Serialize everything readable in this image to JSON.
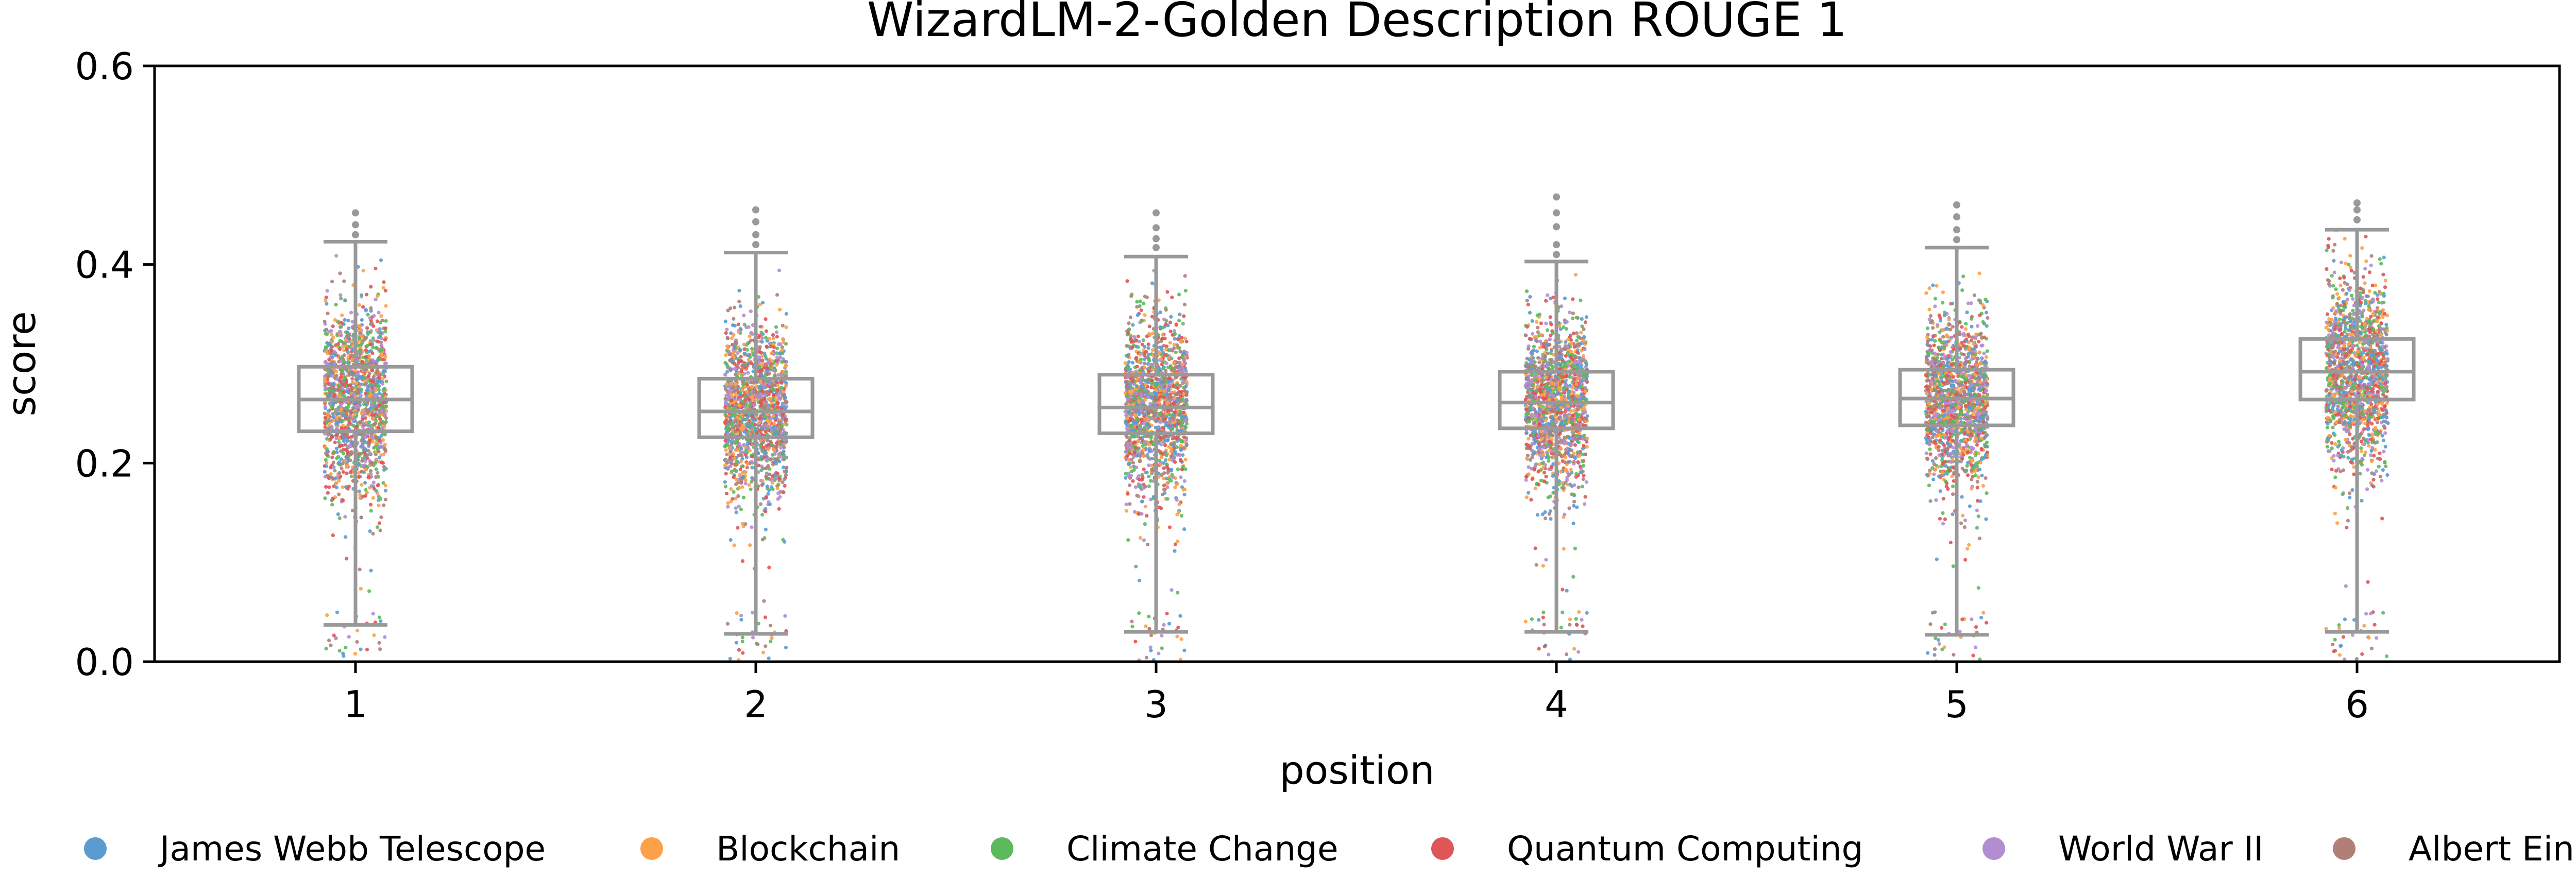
{
  "chart_data": {
    "type": "box-strip",
    "title": "WizardLM-2-Golden Description ROUGE 1",
    "xlabel": "position",
    "ylabel": "score",
    "ylim": [
      0.0,
      0.6
    ],
    "yticks": [
      0.0,
      0.2,
      0.4,
      0.6
    ],
    "ytick_labels": [
      "0.0",
      "0.2",
      "0.4",
      "0.6"
    ],
    "categories": [
      "1",
      "2",
      "3",
      "4",
      "5",
      "6"
    ],
    "grid": false,
    "legend_position": "bottom",
    "box_color": "#999999",
    "boxes": [
      {
        "position": "1",
        "whisker_low": 0.037,
        "q1": 0.232,
        "median": 0.264,
        "q3": 0.297,
        "whisker_high": 0.423,
        "outliers": [
          0.43,
          0.44,
          0.452
        ]
      },
      {
        "position": "2",
        "whisker_low": 0.028,
        "q1": 0.226,
        "median": 0.252,
        "q3": 0.285,
        "whisker_high": 0.412,
        "outliers": [
          0.42,
          0.43,
          0.443,
          0.455
        ]
      },
      {
        "position": "3",
        "whisker_low": 0.03,
        "q1": 0.23,
        "median": 0.256,
        "q3": 0.289,
        "whisker_high": 0.408,
        "outliers": [
          0.417,
          0.426,
          0.437,
          0.452
        ]
      },
      {
        "position": "4",
        "whisker_low": 0.03,
        "q1": 0.235,
        "median": 0.261,
        "q3": 0.292,
        "whisker_high": 0.403,
        "outliers": [
          0.41,
          0.42,
          0.438,
          0.452,
          0.468
        ]
      },
      {
        "position": "5",
        "whisker_low": 0.027,
        "q1": 0.238,
        "median": 0.265,
        "q3": 0.294,
        "whisker_high": 0.417,
        "outliers": [
          0.425,
          0.435,
          0.448,
          0.46
        ]
      },
      {
        "position": "6",
        "whisker_low": 0.03,
        "q1": 0.264,
        "median": 0.292,
        "q3": 0.325,
        "whisker_high": 0.435,
        "outliers": [
          0.445,
          0.455,
          0.462
        ]
      }
    ],
    "series": [
      {
        "name": "James Webb Telescope",
        "color": "#5b9bd0"
      },
      {
        "name": "Blockchain",
        "color": "#fca14a"
      },
      {
        "name": "Climate Change",
        "color": "#5cba5c"
      },
      {
        "name": "Quantum Computing",
        "color": "#e05555"
      },
      {
        "name": "World War II",
        "color": "#b08ed0"
      },
      {
        "name": "Albert Einstein",
        "color": "#b07f78"
      }
    ]
  }
}
